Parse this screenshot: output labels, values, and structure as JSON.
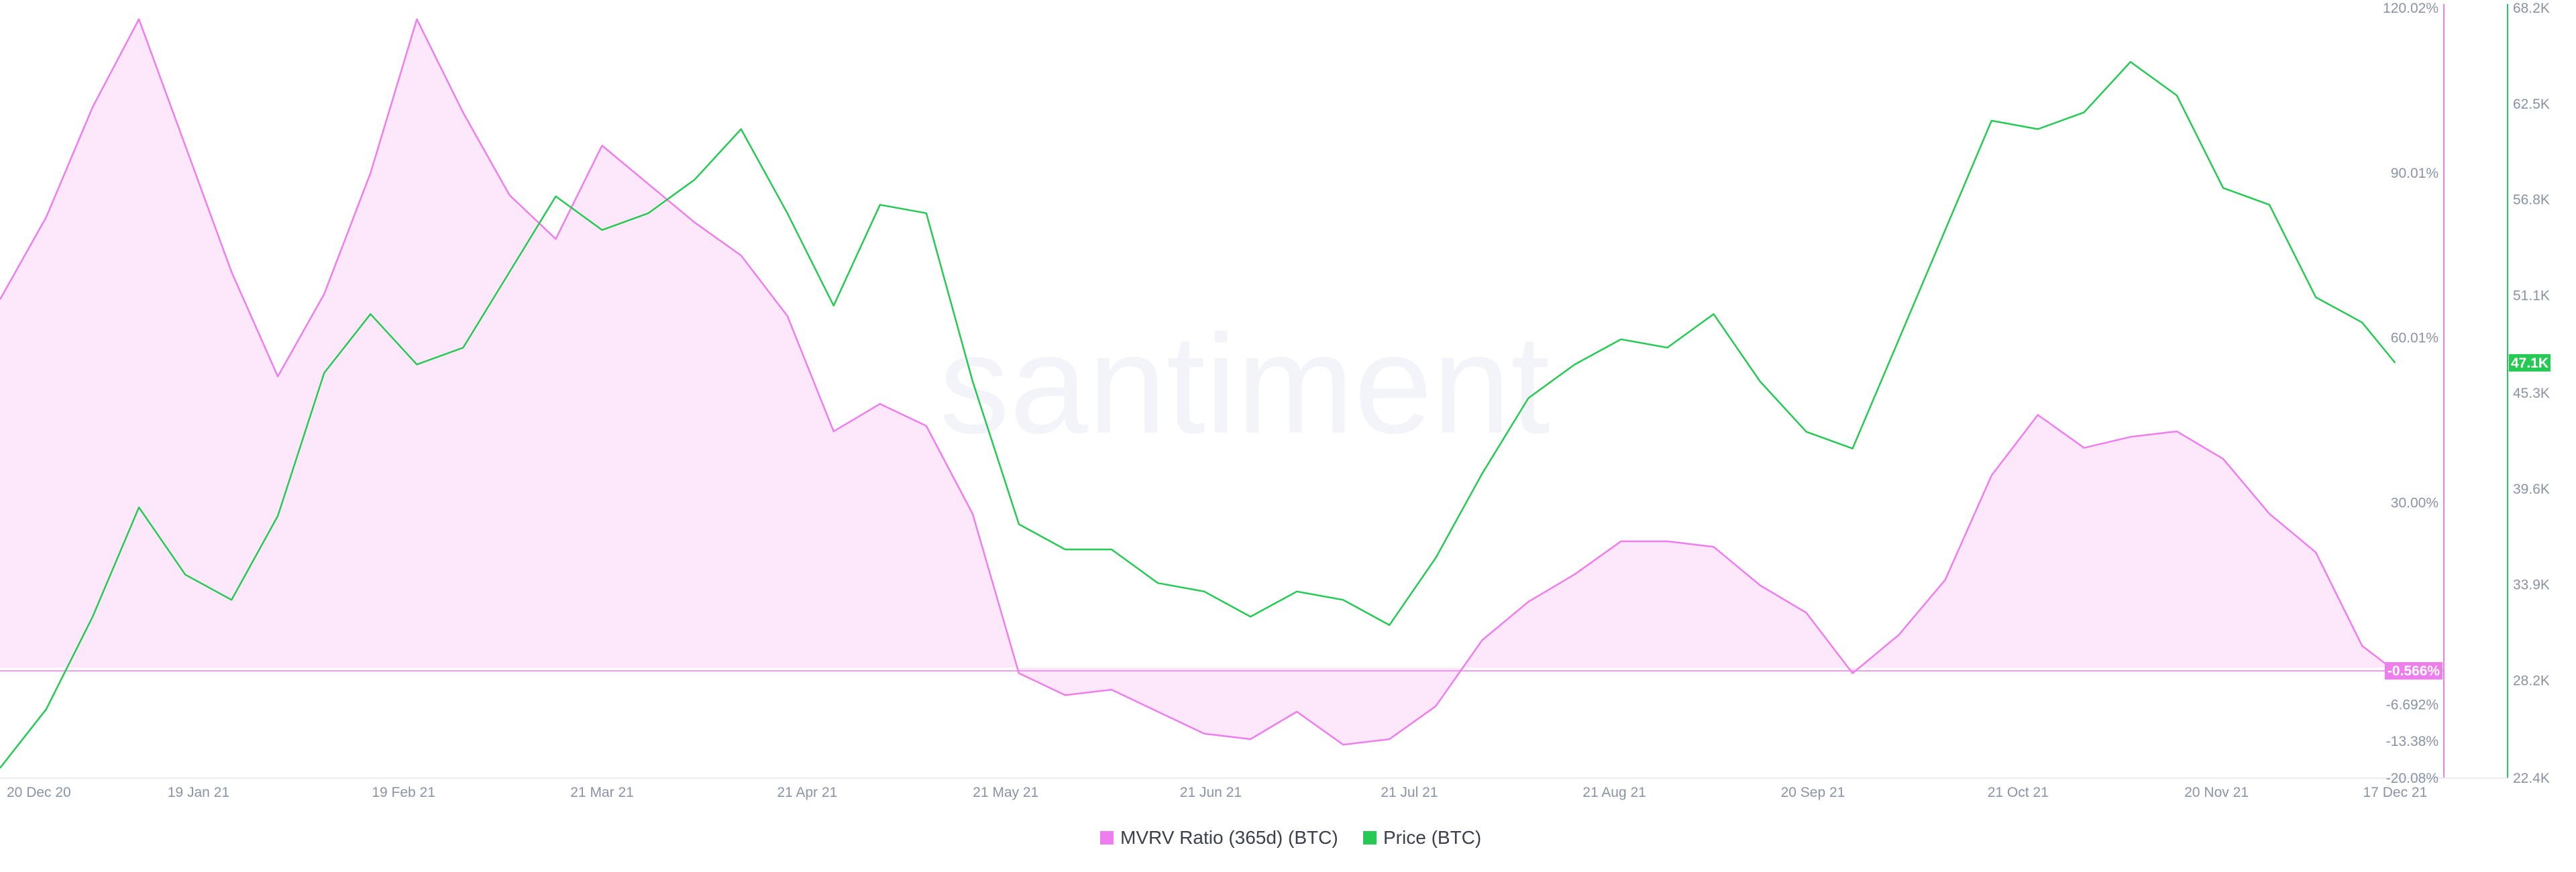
{
  "watermark": "santiment",
  "chart_data": {
    "type": "line",
    "x_tick_labels": [
      "20 Dec 20",
      "19 Jan 21",
      "19 Feb 21",
      "21 Mar 21",
      "21 Apr 21",
      "21 May 21",
      "21 Jun 21",
      "21 Jul 21",
      "21 Aug 21",
      "20 Sep 21",
      "21 Oct 21",
      "20 Nov 21",
      "17 Dec 21"
    ],
    "mvrv_axis": {
      "tick_labels": [
        "120.02%",
        "90.01%",
        "60.01%",
        "30.00%",
        "-6.692%",
        "-13.38%",
        "-20.08%"
      ],
      "min": -20.08,
      "max": 120.02,
      "unit": "%"
    },
    "price_axis": {
      "tick_labels": [
        "68.2K",
        "62.5K",
        "56.8K",
        "51.1K",
        "45.3K",
        "39.6K",
        "33.9K",
        "28.2K",
        "22.4K"
      ],
      "min": 22.4,
      "max": 68.2,
      "unit": "K USD"
    },
    "current": {
      "mvrv_label": "-0.566%",
      "mvrv_value": -0.566,
      "price_label": "47.1K",
      "price_value": 47.1
    },
    "colors": {
      "mvrv": "#ee7ded",
      "mvrv_fill": "#fde8fb",
      "price": "#26c953",
      "mvrv_axis": "#ee7ded",
      "price_axis": "#26c953"
    },
    "series": [
      {
        "name": "MVRV Ratio (365d) (BTC)",
        "x": [
          "2020-12-20",
          "2020-12-27",
          "2021-01-03",
          "2021-01-10",
          "2021-01-17",
          "2021-01-24",
          "2021-01-31",
          "2021-02-07",
          "2021-02-14",
          "2021-02-21",
          "2021-02-28",
          "2021-03-07",
          "2021-03-14",
          "2021-03-21",
          "2021-03-28",
          "2021-04-04",
          "2021-04-11",
          "2021-04-18",
          "2021-04-25",
          "2021-05-02",
          "2021-05-09",
          "2021-05-16",
          "2021-05-23",
          "2021-05-30",
          "2021-06-06",
          "2021-06-13",
          "2021-06-20",
          "2021-06-27",
          "2021-07-04",
          "2021-07-11",
          "2021-07-18",
          "2021-07-25",
          "2021-08-01",
          "2021-08-08",
          "2021-08-15",
          "2021-08-22",
          "2021-08-29",
          "2021-09-05",
          "2021-09-12",
          "2021-09-19",
          "2021-09-26",
          "2021-10-03",
          "2021-10-10",
          "2021-10-17",
          "2021-10-24",
          "2021-10-31",
          "2021-11-07",
          "2021-11-14",
          "2021-11-21",
          "2021-11-28",
          "2021-12-05",
          "2021-12-12",
          "2021-12-17"
        ],
        "values": [
          67,
          82,
          102,
          118,
          95,
          72,
          53,
          68,
          90,
          118,
          101,
          86,
          78,
          95,
          88,
          81,
          75,
          64,
          43,
          48,
          44,
          28,
          -1,
          -5,
          -4,
          -8,
          -12,
          -13,
          -8,
          -14,
          -13,
          -7,
          5,
          12,
          17,
          23,
          23,
          22,
          15,
          10,
          -1,
          6,
          16,
          35,
          46,
          40,
          42,
          43,
          38,
          28,
          21,
          4,
          -0.6
        ]
      },
      {
        "name": "Price (BTC)",
        "x": [
          "2020-12-20",
          "2020-12-27",
          "2021-01-03",
          "2021-01-10",
          "2021-01-17",
          "2021-01-24",
          "2021-01-31",
          "2021-02-07",
          "2021-02-14",
          "2021-02-21",
          "2021-02-28",
          "2021-03-07",
          "2021-03-14",
          "2021-03-21",
          "2021-03-28",
          "2021-04-04",
          "2021-04-11",
          "2021-04-18",
          "2021-04-25",
          "2021-05-02",
          "2021-05-09",
          "2021-05-16",
          "2021-05-23",
          "2021-05-30",
          "2021-06-06",
          "2021-06-13",
          "2021-06-20",
          "2021-06-27",
          "2021-07-04",
          "2021-07-11",
          "2021-07-18",
          "2021-07-25",
          "2021-08-01",
          "2021-08-08",
          "2021-08-15",
          "2021-08-22",
          "2021-08-29",
          "2021-09-05",
          "2021-09-12",
          "2021-09-19",
          "2021-09-26",
          "2021-10-03",
          "2021-10-10",
          "2021-10-17",
          "2021-10-24",
          "2021-10-31",
          "2021-11-07",
          "2021-11-14",
          "2021-11-21",
          "2021-11-28",
          "2021-12-05",
          "2021-12-12",
          "2021-12-17"
        ],
        "values": [
          23.0,
          26.5,
          32.0,
          38.5,
          34.5,
          33.0,
          38.0,
          46.5,
          50.0,
          47.0,
          48.0,
          52.5,
          57.0,
          55.0,
          56.0,
          58.0,
          61.0,
          56.0,
          50.5,
          56.5,
          56.0,
          46.0,
          37.5,
          36.0,
          36.0,
          34.0,
          33.5,
          32.0,
          33.5,
          33.0,
          31.5,
          35.5,
          40.5,
          45.0,
          47.0,
          48.5,
          48.0,
          50.0,
          46.0,
          43.0,
          42.0,
          48.5,
          55.0,
          61.5,
          61.0,
          62.0,
          65.0,
          63.0,
          57.5,
          56.5,
          51.0,
          49.5,
          47.1
        ]
      }
    ]
  }
}
